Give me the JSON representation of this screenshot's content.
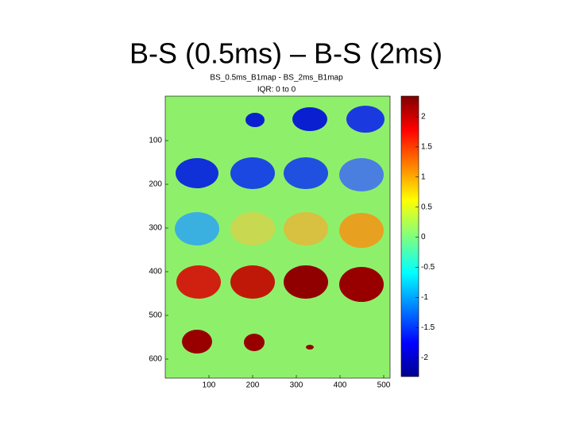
{
  "slide": {
    "title": "B-S (0.5ms) – B-S (2ms)"
  },
  "figure": {
    "title_lines": [
      "BS_0.5ms_B1map - BS_2ms_B1map",
      "IQR: 0 to 0"
    ],
    "y_ticks": [
      100,
      200,
      300,
      400,
      500,
      600
    ],
    "x_ticks": [
      100,
      200,
      300,
      400,
      500
    ],
    "colorbar_ticks": [
      2,
      1.5,
      1,
      0.5,
      0,
      -0.5,
      -1,
      -1.5,
      -2
    ]
  }
}
